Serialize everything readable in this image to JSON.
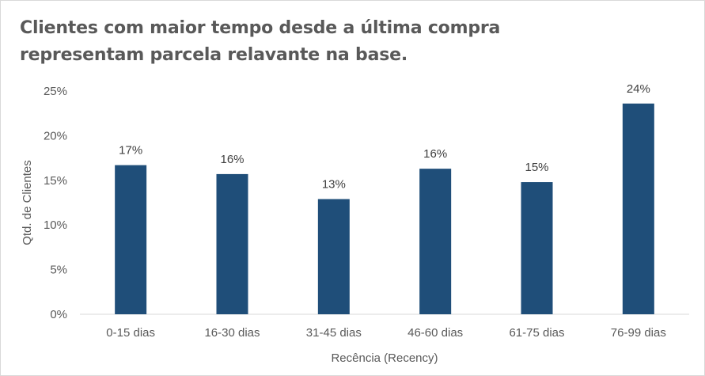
{
  "chart_data": {
    "type": "bar",
    "title_lines": [
      "Clientes com maior tempo desde a última compra",
      "representam parcela relavante na base."
    ],
    "categories": [
      "0-15 dias",
      "16-30 dias",
      "31-45 dias",
      "46-60 dias",
      "61-75 dias",
      "76-99 dias"
    ],
    "values": [
      16.7,
      15.7,
      12.9,
      16.3,
      14.8,
      23.6
    ],
    "data_labels": [
      "17%",
      "16%",
      "13%",
      "16%",
      "15%",
      "24%"
    ],
    "xlabel": "Recência (Recency)",
    "ylabel": "Qtd. de Clientes",
    "ylim": [
      0,
      25
    ],
    "yticks": [
      0,
      5,
      10,
      15,
      20,
      25
    ],
    "ytick_labels": [
      "0%",
      "5%",
      "10%",
      "15%",
      "20%",
      "25%"
    ],
    "bar_color": "#1f4e79",
    "grid": false,
    "legend": "none"
  }
}
